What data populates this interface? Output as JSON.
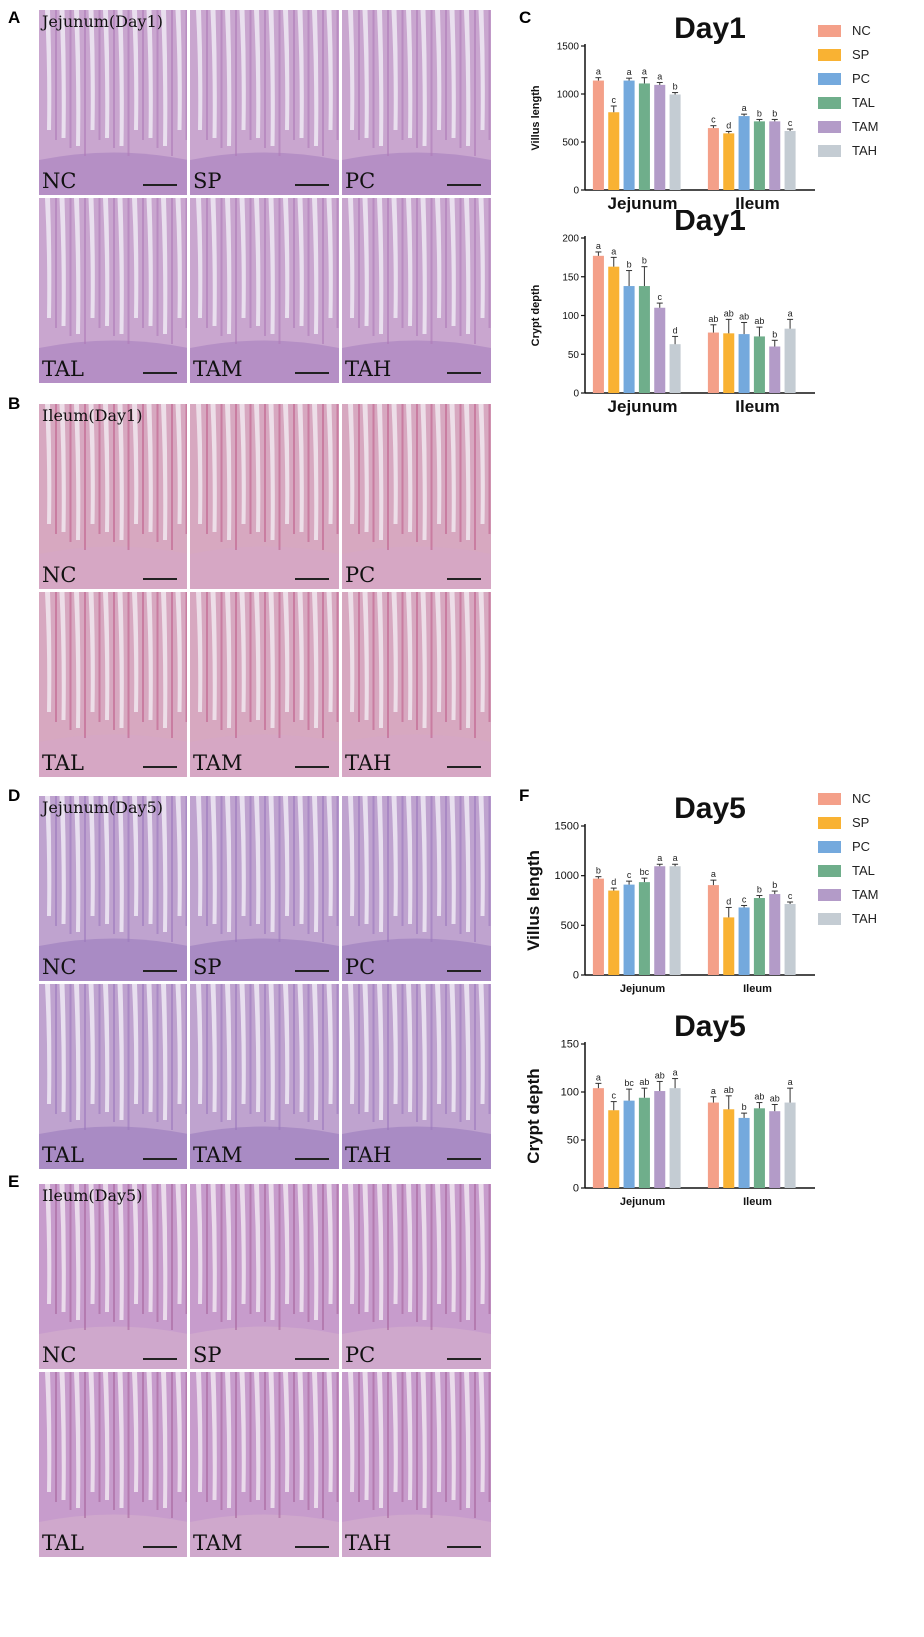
{
  "panels": {
    "A": {
      "letter": "A",
      "title": "Jejunum(Day1)",
      "labels": [
        "NC",
        "SP",
        "PC",
        "TAL",
        "TAM",
        "TAH"
      ]
    },
    "B": {
      "letter": "B",
      "title": "Ileum(Day1)",
      "labels": [
        "NC",
        "",
        "PC",
        "TAL",
        "TAM",
        "TAH"
      ]
    },
    "D": {
      "letter": "D",
      "title": "Jejunum(Day5)",
      "labels": [
        "NC",
        "SP",
        "PC",
        "TAL",
        "TAM",
        "TAH"
      ]
    },
    "E": {
      "letter": "E",
      "title": "Ileum(Day5)",
      "labels": [
        "NC",
        "SP",
        "PC",
        "TAL",
        "TAM",
        "TAH"
      ]
    }
  },
  "panel_C_letter": "C",
  "panel_F_letter": "F",
  "legend": {
    "entries": [
      "NC",
      "SP",
      "PC",
      "TAL",
      "TAM",
      "TAH"
    ],
    "colors": [
      "#f4a089",
      "#f9b233",
      "#74a9dd",
      "#6fae8b",
      "#b39bc8",
      "#c4ccd3"
    ]
  },
  "chart_data": [
    {
      "type": "bar",
      "title": "Day1",
      "ylabel": "Villus length",
      "xlabel": "",
      "categories": [
        "Jejunum",
        "Ileum"
      ],
      "ylim": [
        0,
        1500
      ],
      "yticks": [
        0,
        500,
        1000,
        1500
      ],
      "series": [
        {
          "name": "NC",
          "values": [
            1140,
            645
          ],
          "errors": [
            30,
            25
          ],
          "letters": [
            "a",
            "c"
          ]
        },
        {
          "name": "SP",
          "values": [
            810,
            590
          ],
          "errors": [
            65,
            20
          ],
          "letters": [
            "c",
            "d"
          ]
        },
        {
          "name": "PC",
          "values": [
            1140,
            770
          ],
          "errors": [
            25,
            20
          ],
          "letters": [
            "a",
            "a"
          ]
        },
        {
          "name": "TAL",
          "values": [
            1110,
            715
          ],
          "errors": [
            60,
            20
          ],
          "letters": [
            "a",
            "b"
          ]
        },
        {
          "name": "TAM",
          "values": [
            1095,
            715
          ],
          "errors": [
            25,
            20
          ],
          "letters": [
            "a",
            "b"
          ]
        },
        {
          "name": "TAH",
          "values": [
            995,
            615
          ],
          "errors": [
            20,
            20
          ],
          "letters": [
            "b",
            "c"
          ]
        }
      ]
    },
    {
      "type": "bar",
      "title": "Day1",
      "ylabel": "Crypt depth",
      "xlabel": "",
      "categories": [
        "Jejunum",
        "Ileum"
      ],
      "ylim": [
        0,
        200
      ],
      "yticks": [
        0,
        50,
        100,
        150,
        200
      ],
      "series": [
        {
          "name": "NC",
          "values": [
            177,
            78
          ],
          "errors": [
            5,
            10
          ],
          "letters": [
            "a",
            "ab"
          ]
        },
        {
          "name": "SP",
          "values": [
            163,
            77
          ],
          "errors": [
            12,
            18
          ],
          "letters": [
            "a",
            "ab"
          ]
        },
        {
          "name": "PC",
          "values": [
            138,
            76
          ],
          "errors": [
            20,
            15
          ],
          "letters": [
            "b",
            "ab"
          ]
        },
        {
          "name": "TAL",
          "values": [
            138,
            73
          ],
          "errors": [
            25,
            12
          ],
          "letters": [
            "b",
            "ab"
          ]
        },
        {
          "name": "TAM",
          "values": [
            110,
            60
          ],
          "errors": [
            6,
            8
          ],
          "letters": [
            "c",
            "b"
          ]
        },
        {
          "name": "TAH",
          "values": [
            63,
            83
          ],
          "errors": [
            10,
            12
          ],
          "letters": [
            "d",
            "a"
          ]
        }
      ]
    },
    {
      "type": "bar",
      "title": "Day5",
      "ylabel": "Villus length",
      "xlabel": "",
      "categories": [
        "Jejunum",
        "Ileum"
      ],
      "ylim": [
        0,
        1500
      ],
      "yticks": [
        0,
        500,
        1000,
        1500
      ],
      "series": [
        {
          "name": "NC",
          "values": [
            970,
            905
          ],
          "errors": [
            20,
            50
          ],
          "letters": [
            "b",
            "a"
          ]
        },
        {
          "name": "SP",
          "values": [
            850,
            580
          ],
          "errors": [
            25,
            100
          ],
          "letters": [
            "d",
            "d"
          ]
        },
        {
          "name": "PC",
          "values": [
            910,
            680
          ],
          "errors": [
            35,
            20
          ],
          "letters": [
            "c",
            "c"
          ]
        },
        {
          "name": "TAL",
          "values": [
            935,
            775
          ],
          "errors": [
            40,
            25
          ],
          "letters": [
            "bc",
            "b"
          ]
        },
        {
          "name": "TAM",
          "values": [
            1095,
            815
          ],
          "errors": [
            20,
            30
          ],
          "letters": [
            "a",
            "b"
          ]
        },
        {
          "name": "TAH",
          "values": [
            1095,
            715
          ],
          "errors": [
            20,
            20
          ],
          "letters": [
            "a",
            "c"
          ]
        }
      ]
    },
    {
      "type": "bar",
      "title": "Day5",
      "ylabel": "Crypt depth",
      "xlabel": "",
      "categories": [
        "Jejunum",
        "Ileum"
      ],
      "ylim": [
        0,
        150
      ],
      "yticks": [
        0,
        50,
        100,
        150
      ],
      "series": [
        {
          "name": "NC",
          "values": [
            104,
            89
          ],
          "errors": [
            5,
            6
          ],
          "letters": [
            "a",
            "a"
          ]
        },
        {
          "name": "SP",
          "values": [
            81,
            82
          ],
          "errors": [
            9,
            14
          ],
          "letters": [
            "c",
            "ab"
          ]
        },
        {
          "name": "PC",
          "values": [
            91,
            73
          ],
          "errors": [
            12,
            5
          ],
          "letters": [
            "bc",
            "b"
          ]
        },
        {
          "name": "TAL",
          "values": [
            94,
            83
          ],
          "errors": [
            10,
            6
          ],
          "letters": [
            "ab",
            "ab"
          ]
        },
        {
          "name": "TAM",
          "values": [
            101,
            80
          ],
          "errors": [
            10,
            7
          ],
          "letters": [
            "ab",
            "ab"
          ]
        },
        {
          "name": "TAH",
          "values": [
            104,
            89
          ],
          "errors": [
            10,
            15
          ],
          "letters": [
            "a",
            "a"
          ]
        }
      ]
    }
  ]
}
